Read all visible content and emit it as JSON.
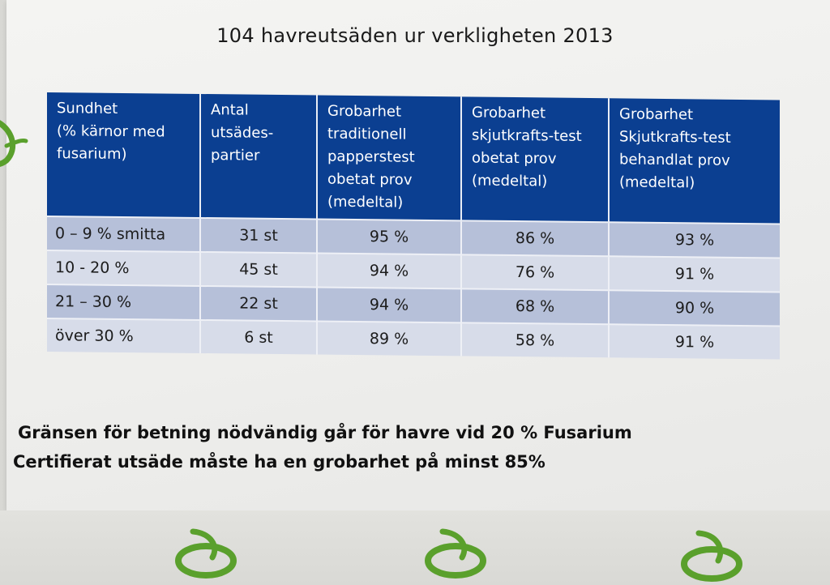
{
  "title": "104 havreutsäden ur verkligheten 2013",
  "table": {
    "headers": [
      "Sundhet\n(% kärnor med\nfusarium)",
      "Antal\nutsädes-\npartier",
      "Grobarhet\ntraditionell\npapperstest\nobetat prov\n(medeltal)",
      "Grobarhet\nskjutkrafts-test\nobetat prov\n(medeltal)",
      "Grobarhet\nSkjutkrafts-test\nbehandlat prov\n(medeltal)"
    ],
    "rows": [
      [
        "0 – 9 % smitta",
        "31 st",
        "95 %",
        "86 %",
        "93 %"
      ],
      [
        "10 - 20 %",
        "45 st",
        "94 %",
        "76 %",
        "91 %"
      ],
      [
        "21 – 30 %",
        "22 st",
        "94 %",
        "68 %",
        "90 %"
      ],
      [
        "över 30 %",
        "6 st",
        "89 %",
        "58 %",
        "91 %"
      ]
    ]
  },
  "notes": {
    "line1": "Gränsen för betning nödvändig går för havre vid 20 % Fusarium",
    "line2": "Certifierat utsäde måste ha en grobarhet på minst 85%"
  },
  "colors": {
    "header_bg": "#0b3f91",
    "row_dark": "#b6c0d9",
    "row_light": "#d7dce9",
    "logo_green": "#5aa02c"
  },
  "icons": [
    "leaf-swirl-logo-icon"
  ]
}
